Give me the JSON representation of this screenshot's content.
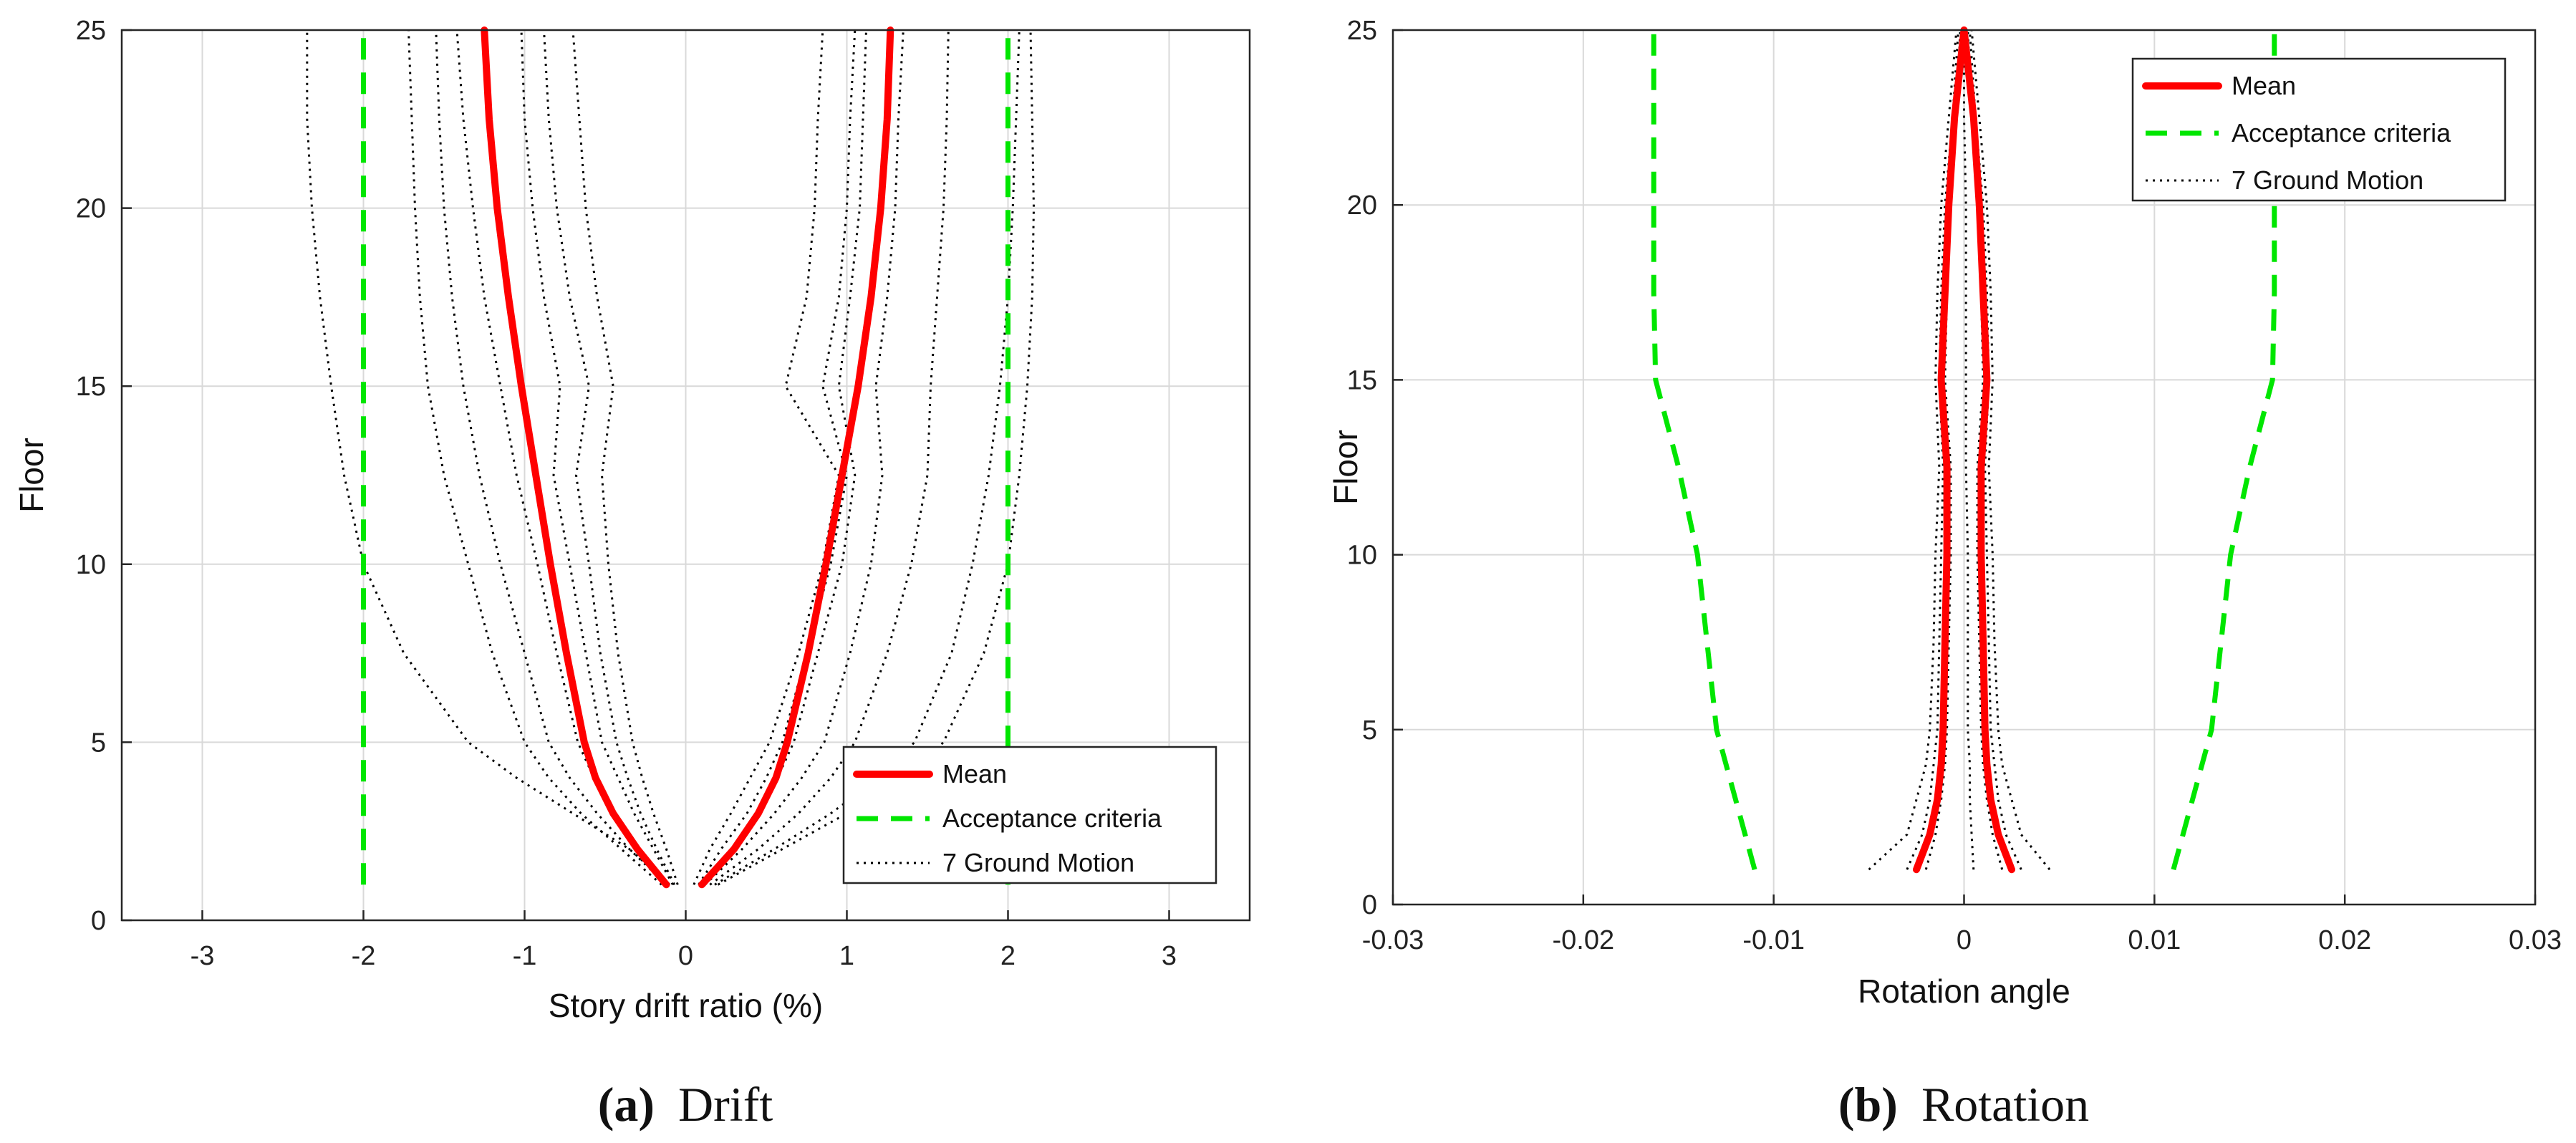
{
  "chart_data": [
    {
      "type": "line",
      "panel": "a",
      "caption_letter": "(a)",
      "caption_word": "Drift",
      "xlabel": "Story drift ratio (%)",
      "ylabel": "Floor",
      "xlim": [
        -3.5,
        3.5
      ],
      "ylim": [
        0,
        25
      ],
      "xticks": [
        -3,
        -2,
        -1,
        0,
        1,
        2,
        3
      ],
      "yticks": [
        0,
        5,
        10,
        15,
        20,
        25
      ],
      "grid": true,
      "legend_position": "bottom-right",
      "legend": [
        "Mean",
        "Acceptance criteria",
        "7 Ground Motion"
      ],
      "floors": [
        1,
        2,
        3,
        4,
        5,
        7.5,
        10,
        12.5,
        15,
        17.5,
        20,
        22.5,
        25
      ],
      "series": [
        {
          "name": "Mean (negative)",
          "style": "mean",
          "values": [
            -0.12,
            -0.3,
            -0.45,
            -0.56,
            -0.63,
            -0.74,
            -0.84,
            -0.93,
            -1.02,
            -1.1,
            -1.17,
            -1.22,
            -1.25
          ]
        },
        {
          "name": "Mean (positive)",
          "style": "mean",
          "values": [
            0.1,
            0.3,
            0.45,
            0.56,
            0.63,
            0.76,
            0.87,
            0.97,
            1.07,
            1.15,
            1.21,
            1.25,
            1.27
          ]
        },
        {
          "name": "Acceptance criteria (negative)",
          "style": "accept",
          "values": [
            -2,
            -2,
            -2,
            -2,
            -2,
            -2,
            -2,
            -2,
            -2,
            -2,
            -2,
            -2,
            -2
          ]
        },
        {
          "name": "Acceptance criteria (positive)",
          "style": "accept",
          "values": [
            2,
            2,
            2,
            2,
            2,
            2,
            2,
            2,
            2,
            2,
            2,
            2,
            2
          ]
        },
        {
          "name": "GM1 (negative)",
          "style": "gm",
          "values": [
            -0.1,
            -0.35,
            -0.7,
            -1.05,
            -1.35,
            -1.75,
            -2.0,
            -2.12,
            -2.2,
            -2.27,
            -2.32,
            -2.35,
            -2.35
          ]
        },
        {
          "name": "GM2 (negative)",
          "style": "gm",
          "values": [
            -0.15,
            -0.4,
            -0.65,
            -0.85,
            -1.0,
            -1.2,
            -1.35,
            -1.5,
            -1.6,
            -1.65,
            -1.68,
            -1.7,
            -1.72
          ]
        },
        {
          "name": "GM3 (negative)",
          "style": "gm",
          "values": [
            -0.12,
            -0.35,
            -0.55,
            -0.72,
            -0.85,
            -1.0,
            -1.15,
            -1.28,
            -1.38,
            -1.45,
            -1.5,
            -1.53,
            -1.55
          ]
        },
        {
          "name": "GM4 (negative)",
          "style": "gm",
          "values": [
            -0.1,
            -0.3,
            -0.45,
            -0.57,
            -0.67,
            -0.8,
            -0.92,
            -1.05,
            -1.15,
            -1.25,
            -1.32,
            -1.38,
            -1.42
          ]
        },
        {
          "name": "GM5 (negative)",
          "style": "gm",
          "values": [
            -0.08,
            -0.2,
            -0.32,
            -0.42,
            -0.52,
            -0.62,
            -0.72,
            -0.82,
            -0.78,
            -0.88,
            -0.95,
            -1.0,
            -1.02
          ]
        },
        {
          "name": "GM6 (negative)",
          "style": "gm",
          "values": [
            -0.07,
            -0.18,
            -0.28,
            -0.36,
            -0.43,
            -0.53,
            -0.6,
            -0.68,
            -0.6,
            -0.72,
            -0.8,
            -0.85,
            -0.88
          ]
        },
        {
          "name": "GM7 (negative)",
          "style": "gm",
          "values": [
            -0.05,
            -0.12,
            -0.2,
            -0.27,
            -0.33,
            -0.42,
            -0.48,
            -0.52,
            -0.45,
            -0.55,
            -0.62,
            -0.66,
            -0.7
          ]
        },
        {
          "name": "GM1 (positive)",
          "style": "gm",
          "values": [
            0.05,
            0.15,
            0.28,
            0.4,
            0.52,
            0.7,
            0.85,
            0.95,
            0.62,
            0.75,
            0.8,
            0.82,
            0.85
          ]
        },
        {
          "name": "GM2 (positive)",
          "style": "gm",
          "values": [
            0.08,
            0.22,
            0.38,
            0.5,
            0.6,
            0.75,
            0.9,
            1.0,
            0.85,
            0.95,
            1.0,
            1.02,
            1.05
          ]
        },
        {
          "name": "GM3 (positive)",
          "style": "gm",
          "values": [
            0.1,
            0.28,
            0.45,
            0.57,
            0.67,
            0.82,
            0.97,
            1.05,
            0.95,
            1.02,
            1.08,
            1.1,
            1.12
          ]
        },
        {
          "name": "GM4 (positive)",
          "style": "gm",
          "values": [
            0.12,
            0.35,
            0.55,
            0.72,
            0.86,
            1.02,
            1.15,
            1.22,
            1.18,
            1.25,
            1.3,
            1.32,
            1.35
          ]
        },
        {
          "name": "GM5 (positive)",
          "style": "gm",
          "values": [
            0.15,
            0.45,
            0.7,
            0.9,
            1.05,
            1.25,
            1.4,
            1.5,
            1.52,
            1.56,
            1.6,
            1.62,
            1.63
          ]
        },
        {
          "name": "GM6 (positive)",
          "style": "gm",
          "values": [
            0.18,
            0.55,
            0.9,
            1.2,
            1.42,
            1.65,
            1.78,
            1.88,
            1.95,
            2.0,
            2.03,
            2.05,
            2.07
          ]
        },
        {
          "name": "GM7 (positive)",
          "style": "gm",
          "values": [
            0.2,
            0.6,
            1.0,
            1.35,
            1.6,
            1.85,
            2.0,
            2.07,
            2.12,
            2.15,
            2.16,
            2.15,
            2.14
          ]
        }
      ]
    },
    {
      "type": "line",
      "panel": "b",
      "caption_letter": "(b)",
      "caption_word": "Rotation",
      "xlabel": "Rotation angle",
      "ylabel": "Floor",
      "xlim": [
        -0.03,
        0.03
      ],
      "ylim": [
        0,
        25
      ],
      "xticks": [
        -0.03,
        -0.02,
        -0.01,
        0,
        0.01,
        0.02,
        0.03
      ],
      "yticks": [
        0,
        5,
        10,
        15,
        20,
        25
      ],
      "grid": true,
      "legend_position": "top-right",
      "legend": [
        "Mean",
        "Acceptance criteria",
        "7 Ground Motion"
      ],
      "floors": [
        1,
        2,
        3,
        4,
        5,
        7.5,
        10,
        12.5,
        15,
        17.5,
        20,
        22.5,
        25
      ],
      "series": [
        {
          "name": "Mean (negative)",
          "style": "mean",
          "values": [
            -0.0025,
            -0.0018,
            -0.0014,
            -0.0012,
            -0.0011,
            -0.001,
            -0.0009,
            -0.0009,
            -0.0012,
            -0.001,
            -0.0008,
            -0.0005,
            0.0
          ]
        },
        {
          "name": "Mean (positive)",
          "style": "mean",
          "values": [
            0.0025,
            0.0018,
            0.0014,
            0.0012,
            0.0011,
            0.001,
            0.0009,
            0.0009,
            0.0012,
            0.001,
            0.0008,
            0.0005,
            0.0
          ]
        },
        {
          "name": "Acceptance criteria (negative)",
          "style": "accept",
          "values": [
            -0.011,
            -0.0115,
            -0.012,
            -0.0125,
            -0.013,
            -0.0135,
            -0.014,
            -0.015,
            -0.0162,
            -0.0163,
            -0.0163,
            -0.0163,
            -0.0163
          ]
        },
        {
          "name": "Acceptance criteria (positive)",
          "style": "accept",
          "values": [
            0.011,
            0.0115,
            0.012,
            0.0125,
            0.013,
            0.0135,
            0.014,
            0.015,
            0.0162,
            0.0163,
            0.0163,
            0.0163,
            0.0163
          ]
        },
        {
          "name": "GM1 (negative)",
          "style": "gm",
          "values": [
            -0.005,
            -0.003,
            -0.0025,
            -0.002,
            -0.0018,
            -0.0016,
            -0.0015,
            -0.0013,
            -0.0015,
            -0.0014,
            -0.0012,
            -0.0008,
            -0.0004
          ]
        },
        {
          "name": "GM2 (negative)",
          "style": "gm",
          "values": [
            -0.003,
            -0.0022,
            -0.0018,
            -0.0016,
            -0.0014,
            -0.0013,
            -0.0012,
            -0.0011,
            -0.0013,
            -0.0012,
            -0.001,
            -0.0006,
            -0.0003
          ]
        },
        {
          "name": "GM3 (negative)",
          "style": "gm",
          "values": [
            -0.002,
            -0.0015,
            -0.0012,
            -0.001,
            -0.0009,
            -0.0008,
            -0.0007,
            -0.0007,
            -0.001,
            -0.0009,
            -0.0007,
            -0.0004,
            -0.0002
          ]
        },
        {
          "name": "GM1 (positive)",
          "style": "gm",
          "values": [
            0.0045,
            0.003,
            0.0025,
            0.002,
            0.0018,
            0.0016,
            0.0015,
            0.0013,
            0.0015,
            0.0014,
            0.0012,
            0.0008,
            0.0004
          ]
        },
        {
          "name": "GM2 (positive)",
          "style": "gm",
          "values": [
            0.003,
            0.0022,
            0.0018,
            0.0016,
            0.0014,
            0.0013,
            0.0012,
            0.0011,
            0.0013,
            0.0012,
            0.001,
            0.0006,
            0.0003
          ]
        },
        {
          "name": "GM3 (positive)",
          "style": "gm",
          "values": [
            0.002,
            0.0015,
            0.0012,
            0.001,
            0.0009,
            0.0008,
            0.0007,
            0.0007,
            0.001,
            0.0009,
            0.0007,
            0.0004,
            0.0002
          ]
        },
        {
          "name": "GM4 (center)",
          "style": "gm",
          "values": [
            0.0005,
            0.0004,
            0.0003,
            0.0003,
            0.0002,
            0.0002,
            0.0002,
            0.0001,
            0.0001,
            0.0001,
            0.0001,
            0.0,
            0.0
          ]
        }
      ]
    }
  ],
  "colors": {
    "mean": "#ff0000",
    "acceptance": "#00e600",
    "ground_motion": "#000000",
    "grid": "#d9d9d9",
    "axis": "#262626"
  }
}
